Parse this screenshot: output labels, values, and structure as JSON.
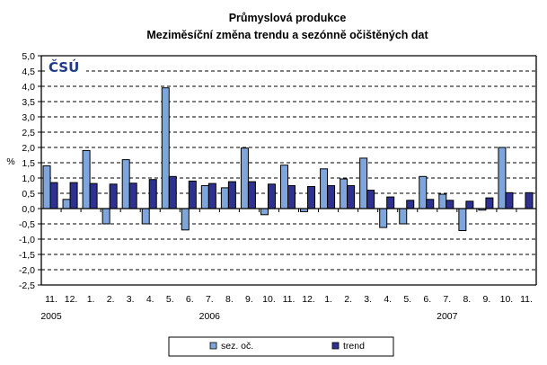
{
  "chart_data": {
    "type": "bar",
    "title": "Průmyslová produkce",
    "subtitle": "Meziměsíční změna trendu a sezónně očištěných dat",
    "xlabel": "",
    "ylabel": "%",
    "ylim": [
      -2.5,
      5.0
    ],
    "ytick_step": 0.5,
    "ytick_labels": [
      "5,0",
      "4,5",
      "4,0",
      "3,5",
      "3,0",
      "2,5",
      "2,0",
      "1,5",
      "1,0",
      "0,5",
      "0,0",
      "-0,5",
      "-1,0",
      "-1,5",
      "-2,0",
      "-2,5"
    ],
    "grid": true,
    "legend_position": "bottom",
    "categories": [
      "11.",
      "12.",
      "1.",
      "2.",
      "3.",
      "4.",
      "5.",
      "6.",
      "7.",
      "8.",
      "9.",
      "10.",
      "11.",
      "12.",
      "1.",
      "2.",
      "3.",
      "4.",
      "5.",
      "6.",
      "7.",
      "8.",
      "9.",
      "10.",
      "11."
    ],
    "year_labels": [
      {
        "label": "2005",
        "category_index": 0
      },
      {
        "label": "2006",
        "category_index": 8
      },
      {
        "label": "2007",
        "category_index": 20
      }
    ],
    "series": [
      {
        "name": "sez. oč.",
        "color": "#7ea6dc",
        "values": [
          1.4,
          0.3,
          1.9,
          -0.5,
          1.6,
          -0.5,
          3.95,
          -0.7,
          0.75,
          0.68,
          1.98,
          -0.2,
          1.42,
          -0.1,
          1.3,
          0.97,
          1.65,
          -0.62,
          -0.5,
          1.05,
          0.47,
          -0.72,
          -0.05,
          2.0,
          null
        ]
      },
      {
        "name": "trend",
        "color": "#2e3192",
        "values": [
          0.85,
          0.85,
          0.82,
          0.8,
          0.83,
          0.95,
          1.05,
          0.9,
          0.82,
          0.88,
          0.88,
          0.8,
          0.75,
          0.72,
          0.75,
          0.75,
          0.6,
          0.38,
          0.27,
          0.3,
          0.27,
          0.24,
          0.35,
          0.52,
          0.52
        ]
      }
    ]
  },
  "logo": {
    "text": "ČSÚ"
  }
}
